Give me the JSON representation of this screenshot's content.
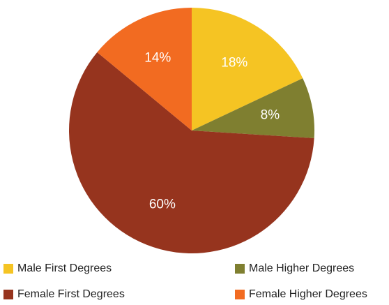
{
  "chart_data": {
    "type": "pie",
    "categories": [
      "Male First Degrees",
      "Male Higher Degrees",
      "Female First Degrees",
      "Female Higher Degrees"
    ],
    "values": [
      18,
      8,
      60,
      14
    ],
    "value_labels": [
      "18%",
      "8%",
      "60%",
      "14%"
    ],
    "colors": [
      "#f5c423",
      "#7f7f30",
      "#96341e",
      "#f26b21"
    ],
    "legend": "bottom"
  }
}
